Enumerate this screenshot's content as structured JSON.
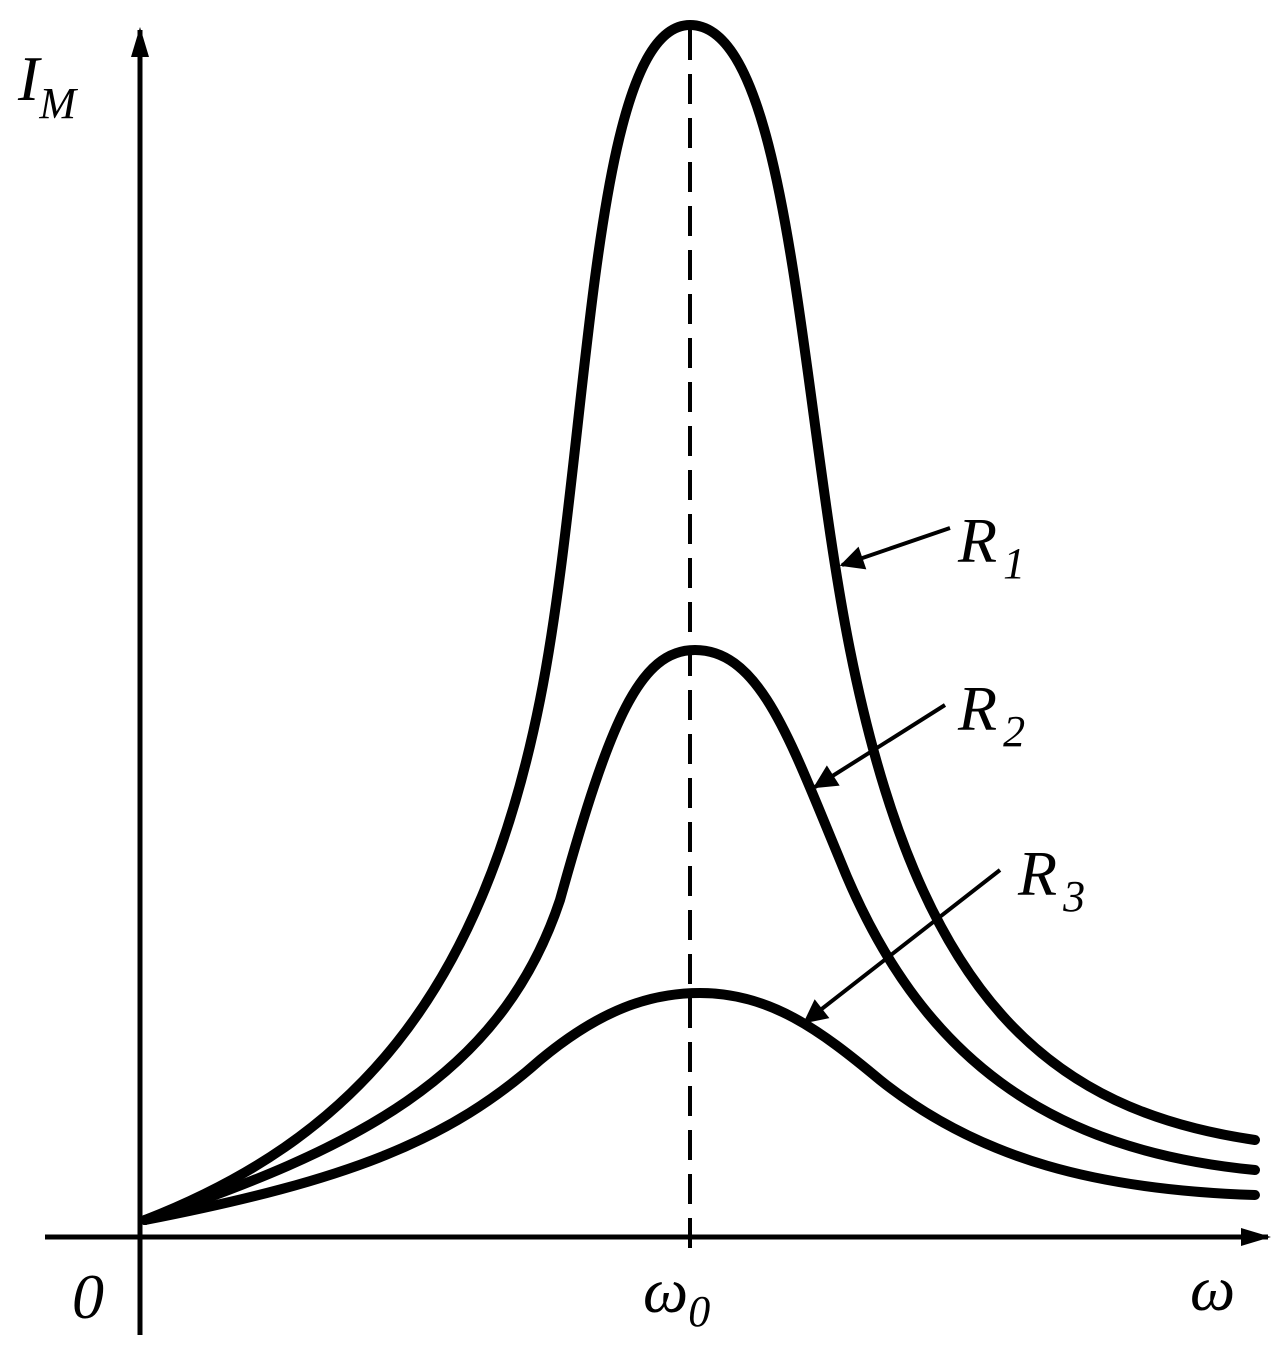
{
  "axes": {
    "y_label": {
      "main": "I",
      "sub": "M"
    },
    "origin": "0",
    "x_label": "ω",
    "resonance": {
      "main": "ω",
      "sub": "0"
    }
  },
  "curves": [
    {
      "label": {
        "main": "R",
        "sub": "1"
      }
    },
    {
      "label": {
        "main": "R",
        "sub": "2"
      }
    },
    {
      "label": {
        "main": "R",
        "sub": "3"
      }
    }
  ]
}
